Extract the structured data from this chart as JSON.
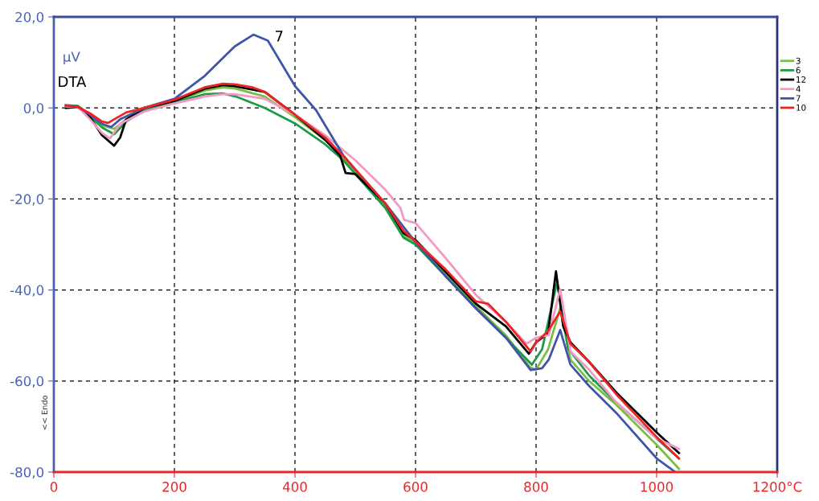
{
  "chart_data": {
    "type": "line",
    "ylabel": "µV",
    "xlim": [
      0,
      1200
    ],
    "ylim": [
      -80,
      20
    ],
    "xticks": [
      0,
      200,
      400,
      600,
      800,
      1000,
      {
        "value": 1200,
        "label": "1200°C"
      }
    ],
    "yticks": [
      {
        "value": -80,
        "label": "-80,0"
      },
      {
        "value": -60,
        "label": "-60,0"
      },
      {
        "value": -40,
        "label": "-40,0"
      },
      {
        "value": -20,
        "label": "-20,0"
      },
      {
        "value": 0,
        "label": "0,0"
      },
      {
        "value": 20,
        "label": "20,0"
      }
    ],
    "grid": true,
    "legend": "right",
    "line_style": "solid",
    "marker": "none",
    "annotations": [
      "DTA",
      "<< Endo",
      "7"
    ],
    "series": [
      {
        "name": "3",
        "color": "#77c043",
        "x": [
          20,
          40,
          60,
          80,
          100,
          120,
          150,
          200,
          250,
          280,
          300,
          350,
          400,
          450,
          480,
          500,
          550,
          580,
          600,
          650,
          700,
          750,
          790,
          800,
          820,
          840,
          857,
          888,
          933,
          1000,
          1037
        ],
        "values": [
          0.6,
          0.4,
          -1.5,
          -3.8,
          -4.6,
          -2.5,
          -0.5,
          1.3,
          3.8,
          4.5,
          4.3,
          2.5,
          -2,
          -7,
          -11,
          -14,
          -21.5,
          -28,
          -29.5,
          -36.5,
          -43.5,
          -50,
          -57,
          -57.5,
          -53,
          -44,
          -55.3,
          -60,
          -65.2,
          -74,
          -79.3
        ]
      },
      {
        "name": "6",
        "color": "#1f9a48",
        "x": [
          20,
          40,
          60,
          80,
          100,
          120,
          150,
          200,
          250,
          280,
          302,
          350,
          400,
          450,
          480,
          500,
          550,
          580,
          600,
          650,
          700,
          750,
          793,
          810,
          835,
          853,
          888,
          933,
          1000,
          1037
        ],
        "values": [
          0.6,
          0.4,
          -1.8,
          -4.3,
          -5.8,
          -3,
          -0.5,
          1.2,
          3,
          3.2,
          2.5,
          0,
          -3.4,
          -8,
          -11.5,
          -14.5,
          -22,
          -28.5,
          -30,
          -37,
          -44,
          -50.5,
          -56.4,
          -53,
          -38.2,
          -52.8,
          -58.8,
          -64.7,
          -72.6,
          -77
        ]
      },
      {
        "name": "12",
        "color": "#000000",
        "x": [
          20,
          40,
          60,
          80,
          100,
          110,
          120,
          150,
          200,
          250,
          280,
          300,
          350,
          400,
          450,
          475,
          484,
          500,
          550,
          580,
          600,
          650,
          700,
          750,
          788,
          800,
          820,
          833,
          845,
          857,
          888,
          933,
          1000,
          1037
        ],
        "values": [
          0,
          0.2,
          -2,
          -6,
          -8.3,
          -6.5,
          -2.5,
          0,
          1.5,
          4.2,
          5,
          4.8,
          3.5,
          -1.5,
          -7,
          -10.5,
          -14.3,
          -14.5,
          -21,
          -27.5,
          -29,
          -36,
          -43,
          -48,
          -54,
          -51.5,
          -49.5,
          -35.9,
          -48,
          -51.5,
          -55.8,
          -62.5,
          -71.3,
          -75.8
        ]
      },
      {
        "name": "4",
        "color": "#f29ac5",
        "x": [
          20,
          40,
          60,
          80,
          93,
          110,
          150,
          200,
          250,
          280,
          300,
          350,
          400,
          450,
          500,
          550,
          575,
          581,
          600,
          650,
          701,
          750,
          784,
          800,
          821,
          840,
          857,
          888,
          933,
          1000,
          1037
        ],
        "values": [
          0.3,
          0.2,
          -2.5,
          -5.5,
          -6.7,
          -3.5,
          -0.8,
          1,
          2.5,
          3,
          3,
          2,
          -1.5,
          -6,
          -11.5,
          -18,
          -22,
          -24.6,
          -25.3,
          -33,
          -41.2,
          -47,
          -51.8,
          -50.5,
          -49.9,
          -39.8,
          -53.5,
          -57.5,
          -64.7,
          -72.6,
          -74.9
        ]
      },
      {
        "name": "7",
        "color": "#3f55a8",
        "x": [
          20,
          40,
          60,
          80,
          95,
          110,
          150,
          200,
          250,
          300,
          331,
          355,
          400,
          435,
          480,
          500,
          550,
          600,
          650,
          700,
          750,
          791,
          810,
          821,
          840,
          857,
          888,
          933,
          1000,
          1031
        ],
        "values": [
          0.5,
          0.3,
          -1.5,
          -3.5,
          -4.2,
          -2.5,
          0,
          2,
          7,
          13.5,
          16.1,
          14.8,
          4.8,
          -0.5,
          -10.4,
          -13.5,
          -21,
          -29.5,
          -37,
          -44,
          -50.5,
          -57.6,
          -57.2,
          -55.3,
          -48.8,
          -56.4,
          -61.1,
          -67,
          -77,
          -80
        ]
      },
      {
        "name": "10",
        "color": "#ee2424",
        "x": [
          20,
          40,
          60,
          80,
          90,
          100,
          120,
          150,
          200,
          250,
          280,
          300,
          330,
          350,
          400,
          450,
          480,
          500,
          550,
          580,
          600,
          650,
          700,
          720,
          750,
          791,
          800,
          820,
          840,
          857,
          888,
          933,
          1000,
          1037
        ],
        "values": [
          0.5,
          0.2,
          -1.2,
          -3,
          -3.3,
          -2.5,
          -1,
          0,
          1.8,
          4.5,
          5.3,
          5.2,
          4.5,
          3.5,
          -1.5,
          -6.5,
          -10.5,
          -13.5,
          -21,
          -27,
          -29.3,
          -35.5,
          -42.5,
          -43,
          -47,
          -53.5,
          -51.5,
          -49,
          -44.7,
          -51.8,
          -55.8,
          -62.9,
          -72.3,
          -77
        ]
      }
    ]
  }
}
